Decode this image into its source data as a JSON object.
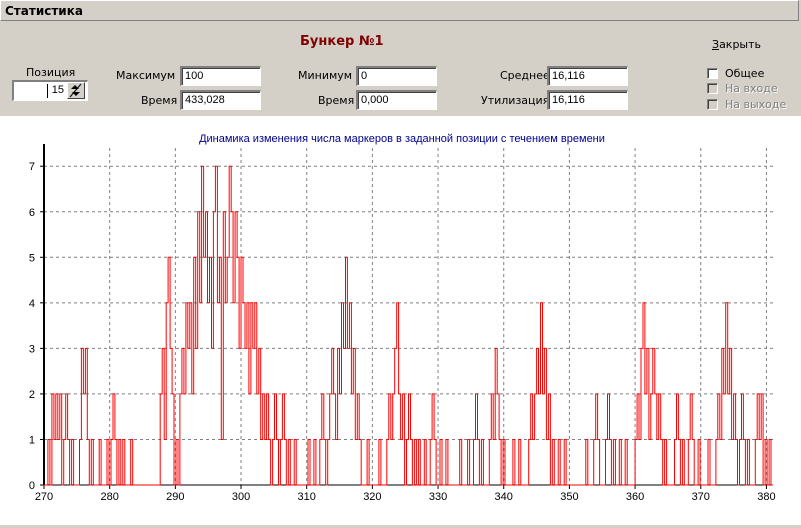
{
  "window": {
    "title": "Статистика"
  },
  "header": {
    "bunker_title": "Бункер №1",
    "close_label": "Закрыть",
    "close_underline": "З",
    "close_rest": "акрыть"
  },
  "position": {
    "label": "Позиция",
    "value": "15"
  },
  "stats": {
    "max_label": "Максимум",
    "max_value": "100",
    "max_time_label": "Время",
    "max_time_value": "433,028",
    "min_label": "Минимум",
    "min_value": "0",
    "min_time_label": "Время",
    "min_time_value": "0,000",
    "avg_label": "Среднее",
    "avg_value": "16,116",
    "util_label": "Утилизация",
    "util_value": "16,116"
  },
  "checkboxes": {
    "general": {
      "label": "Общее",
      "checked": false,
      "enabled": true
    },
    "input": {
      "label": "На входе",
      "checked": false,
      "enabled": false
    },
    "output": {
      "label": "На выходе",
      "checked": false,
      "enabled": false
    }
  },
  "colors": {
    "series": "#ff0000",
    "title": "#00008b",
    "bunker_title": "#800000",
    "grid": "#808080"
  },
  "chart_data": {
    "type": "line",
    "title": "Динамика изменения числа маркеров в заданной позиции с течением времени",
    "xlabel": "",
    "ylabel": "",
    "xlim": [
      270,
      381
    ],
    "ylim": [
      0,
      7.4
    ],
    "x_ticks": [
      270,
      280,
      290,
      300,
      310,
      320,
      330,
      340,
      350,
      360,
      370,
      380
    ],
    "y_ticks": [
      0,
      1,
      2,
      3,
      4,
      5,
      6,
      7
    ],
    "grid": true,
    "legend": "none",
    "series": [
      {
        "step": "post",
        "points": [
          [
            270,
            0
          ],
          [
            270.6,
            1
          ],
          [
            270.9,
            0
          ],
          [
            271.2,
            2
          ],
          [
            271.5,
            1
          ],
          [
            271.8,
            2
          ],
          [
            272.1,
            1
          ],
          [
            272.4,
            2
          ],
          [
            272.7,
            0
          ],
          [
            273.0,
            1
          ],
          [
            273.3,
            2
          ],
          [
            273.6,
            1
          ],
          [
            273.9,
            0
          ],
          [
            274.2,
            1
          ],
          [
            274.5,
            0
          ],
          [
            275.4,
            1
          ],
          [
            275.7,
            3
          ],
          [
            276.0,
            2
          ],
          [
            276.3,
            3
          ],
          [
            276.6,
            1
          ],
          [
            276.9,
            0
          ],
          [
            277.2,
            1
          ],
          [
            277.5,
            0
          ],
          [
            278.4,
            1
          ],
          [
            278.7,
            0
          ],
          [
            279.6,
            1
          ],
          [
            279.9,
            0
          ],
          [
            280.2,
            1
          ],
          [
            280.5,
            2
          ],
          [
            280.8,
            1
          ],
          [
            281.1,
            0
          ],
          [
            281.4,
            1
          ],
          [
            281.7,
            0
          ],
          [
            282.0,
            1
          ],
          [
            282.3,
            0
          ],
          [
            283.2,
            1
          ],
          [
            283.5,
            0
          ],
          [
            287.7,
            2
          ],
          [
            288.0,
            3
          ],
          [
            288.3,
            1
          ],
          [
            288.6,
            4
          ],
          [
            288.9,
            5
          ],
          [
            289.2,
            3
          ],
          [
            289.5,
            2
          ],
          [
            289.8,
            0
          ],
          [
            290.1,
            1
          ],
          [
            290.4,
            0
          ],
          [
            290.7,
            2
          ],
          [
            291.0,
            3
          ],
          [
            291.3,
            2
          ],
          [
            291.6,
            4
          ],
          [
            291.9,
            3
          ],
          [
            292.2,
            4
          ],
          [
            292.5,
            2
          ],
          [
            292.8,
            5
          ],
          [
            293.1,
            3
          ],
          [
            293.4,
            6
          ],
          [
            293.7,
            4
          ],
          [
            294.0,
            7
          ],
          [
            294.3,
            5
          ],
          [
            294.6,
            6
          ],
          [
            294.9,
            4
          ],
          [
            295.2,
            5
          ],
          [
            295.5,
            3
          ],
          [
            295.8,
            6
          ],
          [
            296.1,
            7
          ],
          [
            296.4,
            4
          ],
          [
            296.7,
            5
          ],
          [
            297.0,
            1
          ],
          [
            297.3,
            6
          ],
          [
            297.6,
            4
          ],
          [
            297.9,
            5
          ],
          [
            298.2,
            7
          ],
          [
            298.5,
            6
          ],
          [
            298.8,
            4
          ],
          [
            299.1,
            6
          ],
          [
            299.4,
            5
          ],
          [
            299.7,
            3
          ],
          [
            300.0,
            5
          ],
          [
            300.3,
            4
          ],
          [
            300.6,
            3
          ],
          [
            300.9,
            4
          ],
          [
            301.2,
            2
          ],
          [
            301.5,
            4
          ],
          [
            301.8,
            3
          ],
          [
            302.1,
            4
          ],
          [
            302.4,
            2
          ],
          [
            302.7,
            3
          ],
          [
            303.0,
            1
          ],
          [
            303.3,
            2
          ],
          [
            303.6,
            1
          ],
          [
            303.9,
            2
          ],
          [
            304.2,
            1
          ],
          [
            304.5,
            0
          ],
          [
            304.8,
            1
          ],
          [
            305.1,
            2
          ],
          [
            305.4,
            1
          ],
          [
            305.7,
            0
          ],
          [
            306.0,
            1
          ],
          [
            306.3,
            2
          ],
          [
            306.6,
            1
          ],
          [
            306.9,
            0
          ],
          [
            307.2,
            1
          ],
          [
            307.5,
            0
          ],
          [
            308.1,
            1
          ],
          [
            308.4,
            0
          ],
          [
            310.2,
            1
          ],
          [
            310.5,
            0
          ],
          [
            311.1,
            1
          ],
          [
            311.4,
            0
          ],
          [
            312.0,
            1
          ],
          [
            312.3,
            2
          ],
          [
            312.6,
            1
          ],
          [
            312.9,
            0
          ],
          [
            313.2,
            1
          ],
          [
            313.5,
            2
          ],
          [
            313.8,
            3
          ],
          [
            314.1,
            2
          ],
          [
            314.4,
            1
          ],
          [
            314.7,
            3
          ],
          [
            315.0,
            2
          ],
          [
            315.3,
            4
          ],
          [
            315.6,
            3
          ],
          [
            315.9,
            5
          ],
          [
            316.2,
            3
          ],
          [
            316.5,
            4
          ],
          [
            316.8,
            2
          ],
          [
            317.1,
            3
          ],
          [
            317.4,
            1
          ],
          [
            317.7,
            2
          ],
          [
            318.0,
            1
          ],
          [
            318.3,
            0
          ],
          [
            319.2,
            1
          ],
          [
            319.5,
            0
          ],
          [
            321.0,
            1
          ],
          [
            321.3,
            0
          ],
          [
            322.2,
            1
          ],
          [
            322.5,
            2
          ],
          [
            322.8,
            1
          ],
          [
            323.1,
            2
          ],
          [
            323.4,
            3
          ],
          [
            323.7,
            4
          ],
          [
            324.0,
            2
          ],
          [
            324.3,
            1
          ],
          [
            324.6,
            2
          ],
          [
            324.9,
            0
          ],
          [
            325.2,
            1
          ],
          [
            325.5,
            2
          ],
          [
            325.8,
            1
          ],
          [
            326.1,
            0
          ],
          [
            326.4,
            1
          ],
          [
            326.7,
            0
          ],
          [
            327.0,
            1
          ],
          [
            327.3,
            0
          ],
          [
            327.9,
            1
          ],
          [
            328.2,
            0
          ],
          [
            328.8,
            1
          ],
          [
            329.1,
            2
          ],
          [
            329.4,
            1
          ],
          [
            329.7,
            0
          ],
          [
            330.3,
            1
          ],
          [
            330.6,
            0
          ],
          [
            331.2,
            1
          ],
          [
            331.5,
            0
          ],
          [
            333.3,
            1
          ],
          [
            333.6,
            0
          ],
          [
            334.5,
            1
          ],
          [
            334.8,
            0
          ],
          [
            335.4,
            1
          ],
          [
            335.7,
            2
          ],
          [
            336.0,
            1
          ],
          [
            336.3,
            0
          ],
          [
            336.6,
            1
          ],
          [
            336.9,
            0
          ],
          [
            337.8,
            1
          ],
          [
            338.1,
            2
          ],
          [
            338.4,
            1
          ],
          [
            338.7,
            3
          ],
          [
            339.0,
            2
          ],
          [
            339.3,
            1
          ],
          [
            339.6,
            0
          ],
          [
            339.9,
            1
          ],
          [
            340.2,
            0
          ],
          [
            341.4,
            1
          ],
          [
            341.7,
            0
          ],
          [
            342.3,
            1
          ],
          [
            342.6,
            0
          ],
          [
            343.8,
            1
          ],
          [
            344.1,
            2
          ],
          [
            344.4,
            1
          ],
          [
            344.7,
            2
          ],
          [
            345.0,
            3
          ],
          [
            345.3,
            2
          ],
          [
            345.6,
            4
          ],
          [
            345.9,
            2
          ],
          [
            346.2,
            3
          ],
          [
            346.5,
            1
          ],
          [
            346.8,
            2
          ],
          [
            347.1,
            0
          ],
          [
            347.4,
            1
          ],
          [
            347.7,
            0
          ],
          [
            348.3,
            1
          ],
          [
            348.6,
            0
          ],
          [
            349.2,
            1
          ],
          [
            349.5,
            0
          ],
          [
            352.5,
            1
          ],
          [
            352.8,
            0
          ],
          [
            353.7,
            1
          ],
          [
            354.0,
            2
          ],
          [
            354.3,
            1
          ],
          [
            354.6,
            0
          ],
          [
            355.5,
            1
          ],
          [
            355.8,
            2
          ],
          [
            356.1,
            1
          ],
          [
            356.4,
            0
          ],
          [
            356.7,
            1
          ],
          [
            357.0,
            0
          ],
          [
            357.6,
            1
          ],
          [
            357.9,
            0
          ],
          [
            358.5,
            1
          ],
          [
            358.8,
            0
          ],
          [
            360.0,
            1
          ],
          [
            360.3,
            2
          ],
          [
            360.6,
            1
          ],
          [
            360.9,
            3
          ],
          [
            361.2,
            4
          ],
          [
            361.5,
            2
          ],
          [
            361.8,
            3
          ],
          [
            362.1,
            1
          ],
          [
            362.4,
            2
          ],
          [
            362.7,
            3
          ],
          [
            363.0,
            2
          ],
          [
            363.3,
            1
          ],
          [
            363.6,
            2
          ],
          [
            363.9,
            1
          ],
          [
            364.2,
            0
          ],
          [
            364.5,
            1
          ],
          [
            364.8,
            0
          ],
          [
            366.0,
            1
          ],
          [
            366.3,
            2
          ],
          [
            366.6,
            1
          ],
          [
            366.9,
            0
          ],
          [
            367.2,
            1
          ],
          [
            367.5,
            0
          ],
          [
            368.1,
            1
          ],
          [
            368.4,
            2
          ],
          [
            368.7,
            1
          ],
          [
            369.0,
            0
          ],
          [
            369.6,
            1
          ],
          [
            369.9,
            0
          ],
          [
            371.1,
            1
          ],
          [
            371.4,
            0
          ],
          [
            372.3,
            1
          ],
          [
            372.6,
            2
          ],
          [
            372.9,
            1
          ],
          [
            373.2,
            3
          ],
          [
            373.5,
            2
          ],
          [
            373.8,
            4
          ],
          [
            374.1,
            2
          ],
          [
            374.4,
            3
          ],
          [
            374.7,
            1
          ],
          [
            375.0,
            2
          ],
          [
            375.3,
            1
          ],
          [
            375.6,
            0
          ],
          [
            375.9,
            1
          ],
          [
            376.2,
            2
          ],
          [
            376.5,
            1
          ],
          [
            376.8,
            0
          ],
          [
            377.1,
            1
          ],
          [
            377.4,
            0
          ],
          [
            378.3,
            1
          ],
          [
            378.6,
            2
          ],
          [
            378.9,
            1
          ],
          [
            379.2,
            2
          ],
          [
            379.5,
            0
          ],
          [
            379.8,
            1
          ],
          [
            380.1,
            0
          ],
          [
            380.4,
            1
          ],
          [
            380.7,
            0
          ]
        ]
      }
    ]
  }
}
